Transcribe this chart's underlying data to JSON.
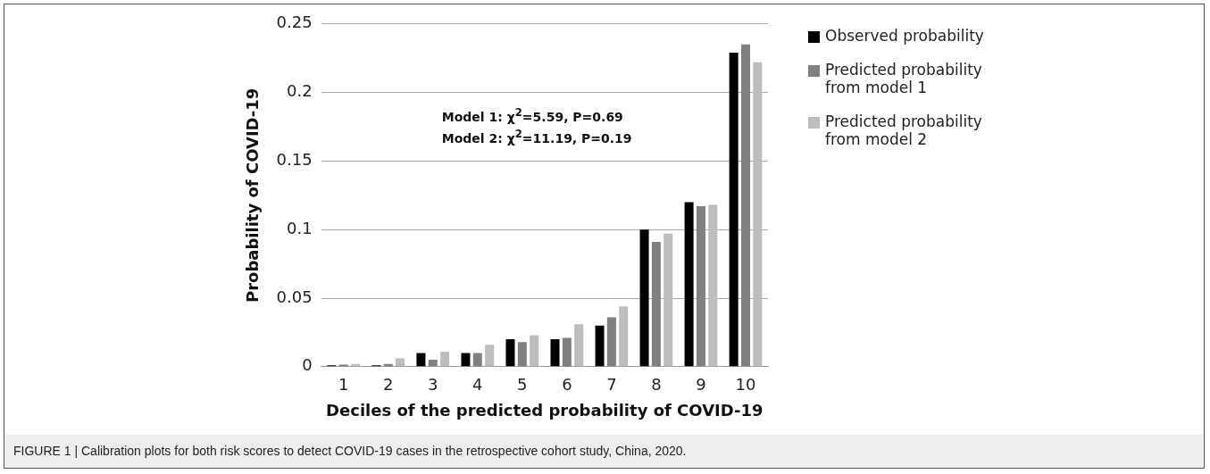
{
  "chart_data": {
    "type": "bar",
    "xlabel": "Deciles of the predicted probability of COVID-19",
    "ylabel": "Probability of COVID-19",
    "categories": [
      "1",
      "2",
      "3",
      "4",
      "5",
      "6",
      "7",
      "8",
      "9",
      "10"
    ],
    "series": [
      {
        "name": "Observed probability",
        "color": "#000000",
        "values": [
          0.001,
          0.001,
          0.01,
          0.01,
          0.02,
          0.02,
          0.03,
          0.1,
          0.12,
          0.229
        ]
      },
      {
        "name": "Predicted probability from model 1",
        "color": "#808080",
        "values": [
          0.0015,
          0.002,
          0.005,
          0.01,
          0.018,
          0.021,
          0.036,
          0.091,
          0.117,
          0.235
        ]
      },
      {
        "name": "Predicted probability from model 2",
        "color": "#bdbdbd",
        "values": [
          0.002,
          0.006,
          0.011,
          0.016,
          0.023,
          0.031,
          0.044,
          0.097,
          0.118,
          0.222
        ]
      }
    ],
    "ylim": [
      0,
      0.25
    ],
    "yticks": [
      0,
      0.05,
      0.1,
      0.15,
      0.2,
      0.25
    ],
    "grid": "y",
    "legend": "right",
    "annotations": [
      "Model 1: χ$^{2}$=5.59, P=0.69",
      "Model 2: χ$^{2}$=11.19, P=0.19",
      "FIGURE 1 | Calibration plots for both risk scores to detect COVID-19 cases in the retrospective cohort study, China, 2020."
    ]
  }
}
